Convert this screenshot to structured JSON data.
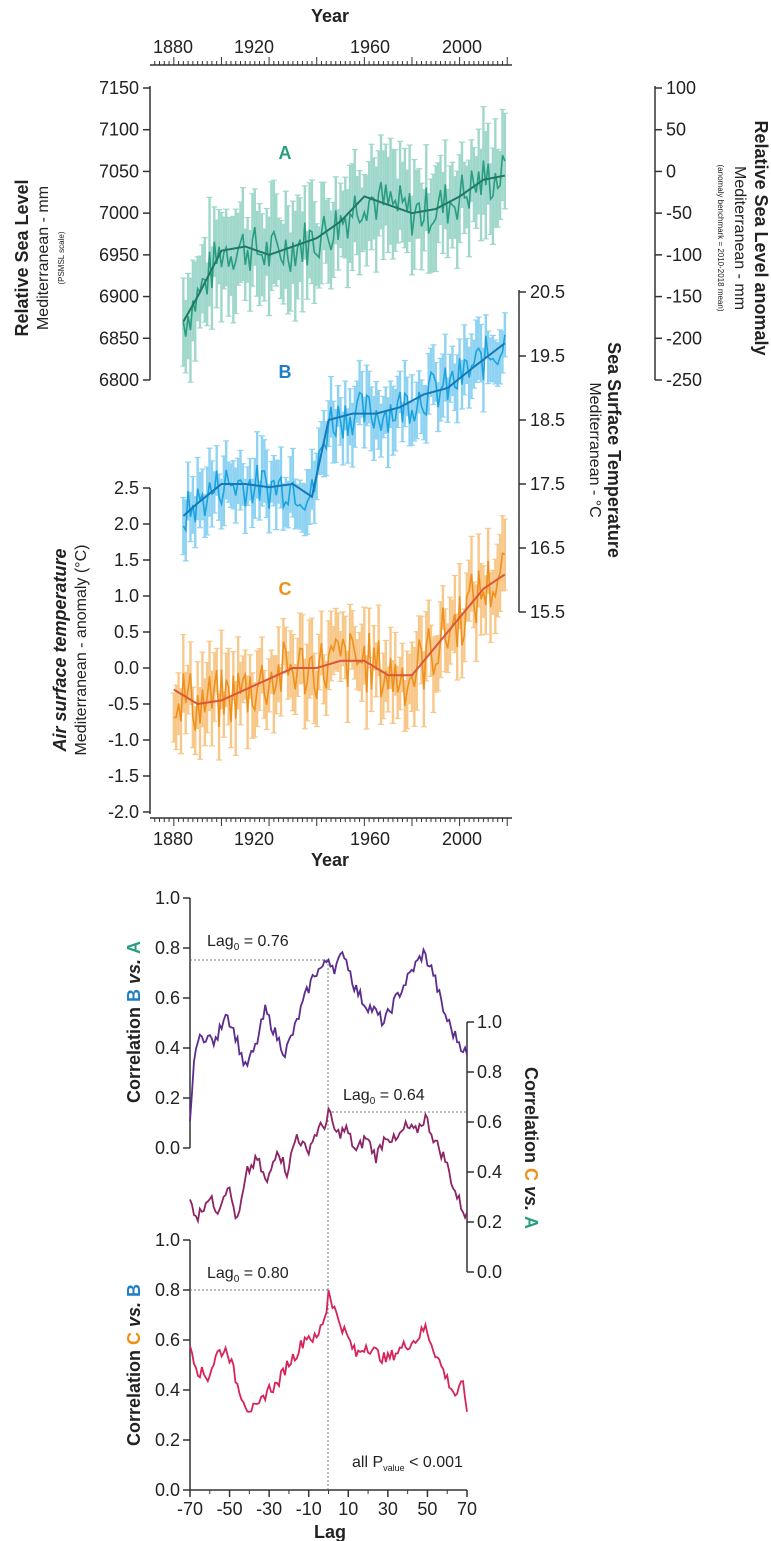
{
  "figure": {
    "top": {
      "x_axis_label": "Year",
      "x_ticks": [
        "1880",
        "1920",
        "1960",
        "2000"
      ],
      "panel_labels": {
        "A": "A",
        "B": "B",
        "C": "C"
      },
      "left_axis": {
        "title": "Relative Sea Level",
        "subtitle": "Mediterranean - mm",
        "note": "(PSMSL scale)",
        "ticks": [
          "7150",
          "7100",
          "7050",
          "7000",
          "6950",
          "6900",
          "6850",
          "6800"
        ]
      },
      "right_axis": {
        "title": "Relative Sea Level anomaly",
        "subtitle": "Mediterranean - mm",
        "note": "(anomaly benchmark = 2010-2018 mean)",
        "ticks": [
          "100",
          "50",
          "0",
          "-50",
          "-100",
          "-150",
          "-200",
          "-250"
        ]
      },
      "sst_axis": {
        "title": "Sea Surface Temperature",
        "subtitle": "Mediterranean - °C",
        "ticks": [
          "20.5",
          "19.5",
          "18.5",
          "17.5",
          "16.5",
          "15.5"
        ]
      },
      "air_axis": {
        "title": "Air surface temperature",
        "subtitle": "Mediterranean - anomaly (°C)",
        "ticks": [
          "2.5",
          "2.0",
          "1.5",
          "1.0",
          "0.5",
          "0.0",
          "-0.5",
          "-1.0",
          "-1.5",
          "-2.0"
        ]
      }
    },
    "bottom": {
      "x_axis_label": "Lag",
      "x_ticks": [
        "-70",
        "-50",
        "-30",
        "-10",
        "10",
        "30",
        "50",
        "70"
      ],
      "corr_ticks": [
        "1.0",
        "0.8",
        "0.6",
        "0.4",
        "0.2",
        "0.0"
      ],
      "axis_BA": {
        "prefix": "Correlation ",
        "y": "B",
        "mid": " vs. ",
        "x": "A"
      },
      "axis_CA": {
        "prefix": "Correlation ",
        "y": "C",
        "mid": " vs. ",
        "x": "A"
      },
      "axis_CB": {
        "prefix": "Correlation ",
        "y": "C",
        "mid": " vs. ",
        "x": "B"
      },
      "lag_BA": {
        "base": "Lag",
        "sub": "0",
        "value": " = 0.76"
      },
      "lag_CA": {
        "base": "Lag",
        "sub": "0",
        "value": " = 0.64"
      },
      "lag_CB": {
        "base": "Lag",
        "sub": "0",
        "value": " = 0.80"
      },
      "pvalue": {
        "base": "all P",
        "sub": "value",
        "value": " < 0.001"
      }
    }
  },
  "colors": {
    "A": "#2a9d80",
    "A_light": "#9fd8cb",
    "B": "#1aa3e0",
    "B_light": "#8fd3f2",
    "C": "#f0901c",
    "C_light": "#f8c88a",
    "C_smooth": "#d9563a",
    "BA": "#5b2d8e",
    "CA": "#8c2466",
    "CB": "#d6245a",
    "B_text": "#1f7fc4",
    "C_text": "#f0901c",
    "A_text": "#2a9d80"
  },
  "chart_data": [
    {
      "type": "line",
      "name": "A",
      "x_range": [
        1884,
        2019
      ],
      "ylim": [
        6800,
        7150
      ],
      "smooth": {
        "x": [
          1884,
          1890,
          1900,
          1910,
          1920,
          1930,
          1940,
          1950,
          1960,
          1970,
          1980,
          1990,
          2000,
          2010,
          2019
        ],
        "y": [
          6870,
          6900,
          6955,
          6960,
          6950,
          6960,
          6970,
          6990,
          7020,
          7010,
          7000,
          7005,
          7020,
          7040,
          7045
        ]
      },
      "error_bar_halfwidth": 60
    },
    {
      "type": "line",
      "name": "B",
      "x_range": [
        1884,
        2019
      ],
      "ylim": [
        15.5,
        20.5
      ],
      "smooth": {
        "x": [
          1884,
          1890,
          1900,
          1910,
          1920,
          1930,
          1938,
          1945,
          1955,
          1965,
          1975,
          1985,
          1995,
          2005,
          2019
        ],
        "y": [
          17.0,
          17.2,
          17.5,
          17.5,
          17.45,
          17.5,
          17.3,
          18.5,
          18.6,
          18.6,
          18.7,
          18.9,
          19.0,
          19.3,
          19.7
        ]
      },
      "error_bar_halfwidth": 0.5
    },
    {
      "type": "line",
      "name": "C",
      "x_range": [
        1880,
        2019
      ],
      "ylim": [
        -2.0,
        2.5
      ],
      "smooth": {
        "x": [
          1880,
          1890,
          1900,
          1910,
          1920,
          1930,
          1940,
          1950,
          1960,
          1970,
          1980,
          1990,
          2000,
          2010,
          2019
        ],
        "y": [
          -0.3,
          -0.5,
          -0.45,
          -0.3,
          -0.15,
          0.0,
          0.0,
          0.1,
          0.1,
          -0.1,
          -0.1,
          0.3,
          0.7,
          1.1,
          1.3
        ]
      },
      "error_bar_halfwidth": 0.5
    },
    {
      "type": "line",
      "name": "Correlation B vs. A",
      "xlim": [
        -70,
        70
      ],
      "ylim": [
        0,
        1
      ],
      "x": [
        -70,
        -67,
        -62,
        -57,
        -52,
        -47,
        -42,
        -37,
        -32,
        -27,
        -22,
        -17,
        -12,
        -7,
        -2,
        0,
        3,
        8,
        13,
        18,
        23,
        28,
        33,
        38,
        43,
        48,
        53,
        58,
        63,
        68,
        70
      ],
      "y": [
        0.12,
        0.42,
        0.45,
        0.42,
        0.55,
        0.45,
        0.32,
        0.4,
        0.55,
        0.46,
        0.38,
        0.48,
        0.6,
        0.7,
        0.73,
        0.76,
        0.72,
        0.78,
        0.65,
        0.58,
        0.55,
        0.5,
        0.58,
        0.65,
        0.72,
        0.78,
        0.7,
        0.55,
        0.46,
        0.4,
        0.37
      ]
    },
    {
      "type": "line",
      "name": "Correlation C vs. A",
      "xlim": [
        -70,
        70
      ],
      "ylim": [
        0,
        1
      ],
      "x": [
        -70,
        -66,
        -61,
        -56,
        -51,
        -46,
        -41,
        -36,
        -31,
        -26,
        -21,
        -16,
        -11,
        -6,
        -1,
        0,
        4,
        9,
        14,
        19,
        24,
        29,
        34,
        39,
        44,
        49,
        54,
        59,
        64,
        68,
        70
      ],
      "y": [
        0.28,
        0.22,
        0.3,
        0.25,
        0.35,
        0.2,
        0.4,
        0.45,
        0.35,
        0.5,
        0.4,
        0.55,
        0.48,
        0.56,
        0.6,
        0.64,
        0.55,
        0.57,
        0.48,
        0.54,
        0.46,
        0.55,
        0.52,
        0.58,
        0.56,
        0.62,
        0.52,
        0.45,
        0.32,
        0.25,
        0.22
      ]
    },
    {
      "type": "line",
      "name": "Correlation C vs. B",
      "xlim": [
        -70,
        70
      ],
      "ylim": [
        0,
        1
      ],
      "x": [
        -70,
        -66,
        -61,
        -56,
        -51,
        -46,
        -41,
        -36,
        -31,
        -26,
        -21,
        -16,
        -11,
        -6,
        -1,
        0,
        4,
        9,
        14,
        19,
        24,
        29,
        34,
        39,
        44,
        49,
        54,
        59,
        64,
        68,
        70
      ],
      "y": [
        0.58,
        0.48,
        0.45,
        0.55,
        0.56,
        0.42,
        0.33,
        0.32,
        0.4,
        0.42,
        0.5,
        0.55,
        0.62,
        0.6,
        0.72,
        0.8,
        0.7,
        0.62,
        0.54,
        0.58,
        0.55,
        0.52,
        0.55,
        0.58,
        0.6,
        0.65,
        0.55,
        0.46,
        0.38,
        0.42,
        0.33
      ]
    }
  ]
}
